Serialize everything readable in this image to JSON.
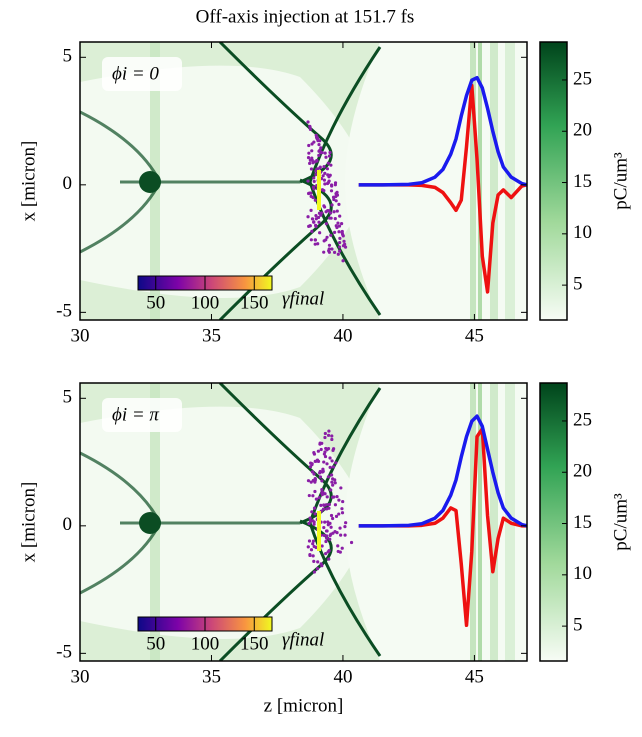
{
  "title": "Off-axis injection at 151.7 fs",
  "chart_data": [
    {
      "type": "line",
      "annotation": "ϕi = 0",
      "ylabel": "x [micron]",
      "xlim": [
        30,
        47
      ],
      "ylim": [
        -5.3,
        5.6
      ],
      "xticks": [
        30,
        35,
        40,
        45
      ],
      "yticks": [
        -5,
        0,
        5
      ],
      "x": [
        40.6,
        41.5,
        42.5,
        43.0,
        43.5,
        43.8,
        44.1,
        44.3,
        44.5,
        44.7,
        44.9,
        45.1,
        45.3,
        45.5,
        45.7,
        45.9,
        46.1,
        46.4,
        46.8,
        47.0
      ],
      "series": [
        {
          "color": "#ee1111",
          "values": [
            0,
            0,
            0,
            -0.02,
            -0.1,
            -0.3,
            -0.7,
            -1.0,
            -0.6,
            1.5,
            3.9,
            1.0,
            -2.8,
            -4.2,
            -1.5,
            -0.4,
            -0.2,
            -0.5,
            -0.05,
            0
          ]
        },
        {
          "color": "#1a1aee",
          "values": [
            0,
            0,
            0.02,
            0.08,
            0.3,
            0.6,
            1.2,
            1.8,
            2.7,
            3.5,
            4.1,
            4.2,
            3.8,
            3.0,
            2.1,
            1.3,
            0.7,
            0.3,
            0.05,
            0
          ]
        }
      ],
      "colorbar": {
        "label": "pC/um³",
        "lim": [
          1.6,
          28.7
        ],
        "ticks": [
          5,
          10,
          15,
          20,
          25
        ]
      },
      "inset_colorbar": {
        "label": "γfinal",
        "lim": [
          32,
          168
        ],
        "ticks": [
          50,
          100,
          150
        ]
      }
    },
    {
      "type": "line",
      "annotation": "ϕi = π",
      "ylabel": "x [micron]",
      "xlabel": "z [micron]",
      "xlim": [
        30,
        47
      ],
      "ylim": [
        -5.3,
        5.6
      ],
      "xticks": [
        30,
        35,
        40,
        45
      ],
      "yticks": [
        -5,
        0,
        5
      ],
      "x": [
        40.6,
        41.5,
        42.5,
        43.0,
        43.5,
        43.8,
        44.1,
        44.3,
        44.5,
        44.7,
        44.9,
        45.1,
        45.3,
        45.5,
        45.7,
        45.9,
        46.1,
        46.4,
        46.8,
        47.0
      ],
      "series": [
        {
          "color": "#ee1111",
          "values": [
            0,
            0,
            0,
            0.02,
            0.1,
            0.3,
            0.7,
            0.6,
            -1.5,
            -3.9,
            -1.0,
            3.5,
            3.8,
            0.4,
            -1.8,
            -0.5,
            0.3,
            0.1,
            0,
            0
          ]
        },
        {
          "color": "#1a1aee",
          "values": [
            0,
            0,
            0.02,
            0.08,
            0.3,
            0.6,
            1.2,
            1.8,
            2.7,
            3.5,
            4.1,
            4.3,
            3.9,
            3.0,
            2.1,
            1.3,
            0.7,
            0.3,
            0.05,
            0
          ]
        }
      ],
      "colorbar": {
        "label": "pC/um³",
        "lim": [
          1.6,
          28.7
        ],
        "ticks": [
          5,
          10,
          15,
          20,
          25
        ]
      },
      "inset_colorbar": {
        "label": "γfinal",
        "lim": [
          32,
          168
        ],
        "ticks": [
          50,
          100,
          150
        ]
      }
    }
  ]
}
